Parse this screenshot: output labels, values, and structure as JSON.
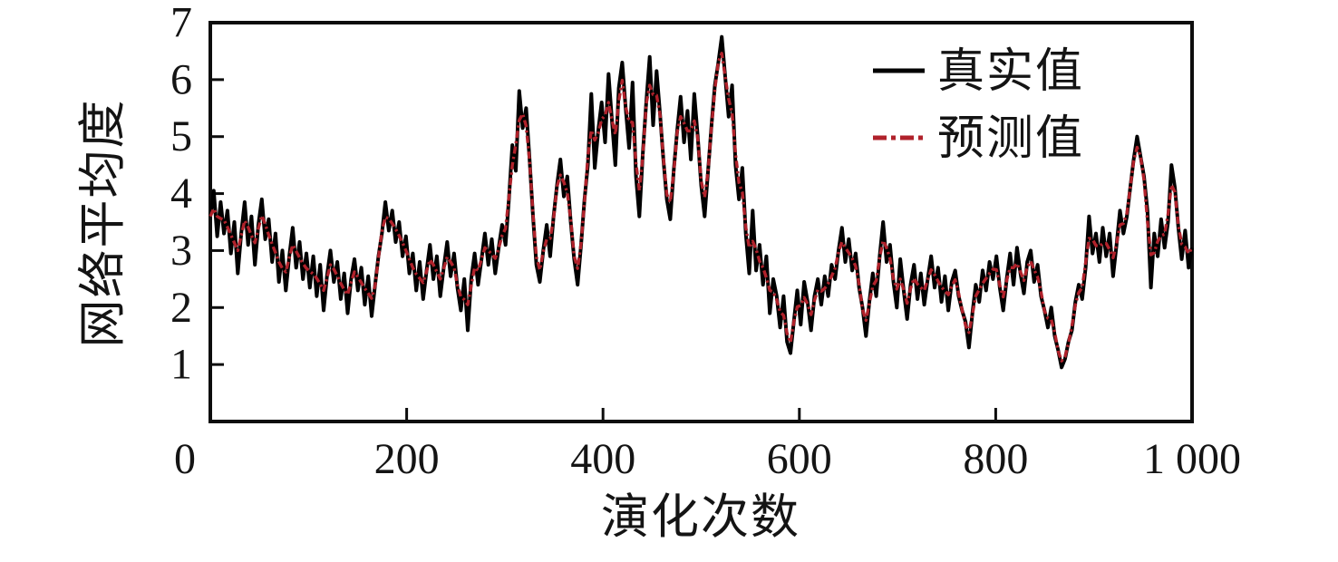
{
  "chart_data": {
    "type": "line",
    "title": "",
    "xlabel": "演化次数",
    "ylabel": "网络平均度",
    "xlim": [
      0,
      1000
    ],
    "ylim": [
      0,
      7
    ],
    "grid": false,
    "x_ticks": [
      {
        "value": 0,
        "label": "0"
      },
      {
        "value": 200,
        "label": "200"
      },
      {
        "value": 400,
        "label": "400"
      },
      {
        "value": 600,
        "label": "600"
      },
      {
        "value": 800,
        "label": "800"
      },
      {
        "value": 1000,
        "label": "1 000"
      }
    ],
    "y_ticks": [
      {
        "value": 1,
        "label": "1"
      },
      {
        "value": 2,
        "label": "2"
      },
      {
        "value": 3,
        "label": "3"
      },
      {
        "value": 4,
        "label": "4"
      },
      {
        "value": 5,
        "label": "5"
      },
      {
        "value": 6,
        "label": "6"
      },
      {
        "value": 7,
        "label": "7"
      }
    ],
    "legend_position": "top-right",
    "legend": {
      "items": [
        {
          "label": "真实值",
          "color": "#000000",
          "line_style": "solid"
        },
        {
          "label": "预测值",
          "color": "#b0222b",
          "line_style": "dash-dot"
        }
      ]
    },
    "series": [
      {
        "name": "真实值",
        "color": "#000000",
        "line_style": "solid",
        "x_start": 0,
        "x_end": 1000,
        "values": [
          3.6,
          4.05,
          3.25,
          3.85,
          3.3,
          3.7,
          2.95,
          3.5,
          2.6,
          3.3,
          3.85,
          3.1,
          3.6,
          2.75,
          3.45,
          3.9,
          3.2,
          3.55,
          2.8,
          3.3,
          2.45,
          3.0,
          2.3,
          2.9,
          3.4,
          2.7,
          3.15,
          2.5,
          2.95,
          2.35,
          2.9,
          2.2,
          2.75,
          1.95,
          2.55,
          3.0,
          2.45,
          2.8,
          2.15,
          2.6,
          1.9,
          2.5,
          2.85,
          2.3,
          2.7,
          2.05,
          2.55,
          1.85,
          2.4,
          2.9,
          3.3,
          3.85,
          3.35,
          3.7,
          3.15,
          3.5,
          2.9,
          3.25,
          2.6,
          2.95,
          2.3,
          2.8,
          2.15,
          2.65,
          3.1,
          2.5,
          2.9,
          2.2,
          2.7,
          3.15,
          2.55,
          2.95,
          2.35,
          1.95,
          2.5,
          1.6,
          2.5,
          2.95,
          2.4,
          2.85,
          3.3,
          2.75,
          3.2,
          2.6,
          3.05,
          3.45,
          3.1,
          3.9,
          4.85,
          4.4,
          5.8,
          5.15,
          5.5,
          4.6,
          3.6,
          2.75,
          2.45,
          3.0,
          3.45,
          2.9,
          3.6,
          4.15,
          4.6,
          3.95,
          4.3,
          3.5,
          2.85,
          2.4,
          3.1,
          3.9,
          4.5,
          5.75,
          4.45,
          5.1,
          5.6,
          4.9,
          6.1,
          5.3,
          4.5,
          5.85,
          6.3,
          5.5,
          4.8,
          5.95,
          4.3,
          3.6,
          4.7,
          5.6,
          6.4,
          5.2,
          6.15,
          5.4,
          4.6,
          3.9,
          3.55,
          4.4,
          5.1,
          5.7,
          4.9,
          5.45,
          4.6,
          5.75,
          5.0,
          4.15,
          3.6,
          4.4,
          5.2,
          5.9,
          6.3,
          6.75,
          6.05,
          5.35,
          5.9,
          4.5,
          3.9,
          4.45,
          3.3,
          2.6,
          3.7,
          2.65,
          3.1,
          2.4,
          2.9,
          1.9,
          2.5,
          2.2,
          1.65,
          2.2,
          1.4,
          1.2,
          1.75,
          2.3,
          1.7,
          2.45,
          2.1,
          1.6,
          2.2,
          2.5,
          2.05,
          2.55,
          2.2,
          2.75,
          2.5,
          3.0,
          3.4,
          2.8,
          3.2,
          2.65,
          2.95,
          2.35,
          2.0,
          1.5,
          2.1,
          2.6,
          2.2,
          2.9,
          3.5,
          2.8,
          3.1,
          2.45,
          2.0,
          2.85,
          2.3,
          1.8,
          2.4,
          2.75,
          2.15,
          2.6,
          2.05,
          2.5,
          2.9,
          2.35,
          2.7,
          2.1,
          2.55,
          1.95,
          2.45,
          2.65,
          2.2,
          1.95,
          1.75,
          1.3,
          1.9,
          2.4,
          2.1,
          2.65,
          2.3,
          2.8,
          2.5,
          2.9,
          2.35,
          1.95,
          2.5,
          2.95,
          2.4,
          3.05,
          2.6,
          2.25,
          2.8,
          3.0,
          2.45,
          2.75,
          2.2,
          1.95,
          1.65,
          2.0,
          1.5,
          1.25,
          0.95,
          1.1,
          1.4,
          1.6,
          2.1,
          2.4,
          2.15,
          2.7,
          3.6,
          2.95,
          3.3,
          2.8,
          3.4,
          2.9,
          3.3,
          2.55,
          3.1,
          3.7,
          3.3,
          3.6,
          4.1,
          4.6,
          5.0,
          4.65,
          4.3,
          3.7,
          2.35,
          3.3,
          2.9,
          3.55,
          3.05,
          3.5,
          4.5,
          4.1,
          3.4,
          2.85,
          3.35,
          2.7,
          3.05
        ]
      },
      {
        "name": "预测值",
        "color": "#b0222b",
        "line_style": "dash-dot",
        "x_start": 0,
        "x_end": 1000,
        "values_note": "coincides with 真实值 within line width; rendered as lightly smoothed copy of 真实值",
        "smooth_kernel": [
          0.25,
          0.5,
          0.25
        ]
      }
    ]
  }
}
